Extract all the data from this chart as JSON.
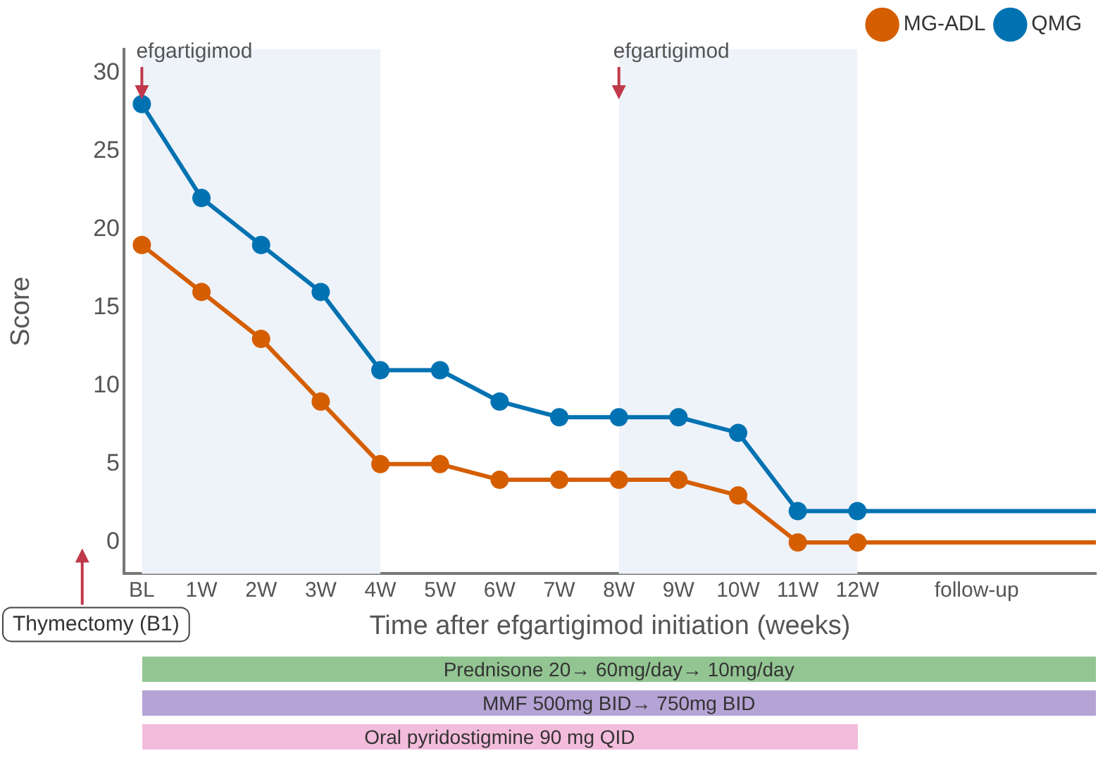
{
  "chart_data": {
    "type": "line",
    "xlabel": "Time after efgartigimod initiation (weeks)",
    "ylabel": "Score",
    "categories": [
      "BL",
      "1W",
      "2W",
      "3W",
      "4W",
      "5W",
      "6W",
      "7W",
      "8W",
      "9W",
      "10W",
      "11W",
      "12W",
      null,
      "follow-up",
      null,
      null
    ],
    "series": [
      {
        "name": "MG-ADL",
        "color": "#d55e00",
        "values": [
          19,
          16,
          13,
          9,
          5,
          5,
          4,
          4,
          4,
          4,
          3,
          0,
          0,
          null,
          null,
          null,
          0
        ]
      },
      {
        "name": "QMG",
        "color": "#0072b2",
        "values": [
          28,
          22,
          19,
          16,
          11,
          11,
          9,
          8,
          8,
          8,
          7,
          2,
          2,
          null,
          null,
          null,
          2
        ]
      }
    ],
    "ylim": [
      -2,
      31.5
    ],
    "yticks": [
      0,
      5,
      10,
      15,
      20,
      25,
      30
    ],
    "grid": false,
    "legend": "top right",
    "marker": "circle",
    "line_style": "solid",
    "bands": [
      {
        "axis": "x",
        "from": "BL",
        "to": "4W",
        "color": "#eef2f9"
      },
      {
        "axis": "x",
        "from": "8W",
        "to": "12W",
        "color": "#eef2f9"
      }
    ],
    "annotations": [
      {
        "text": "efgartigimod",
        "x": "BL",
        "y": 31
      },
      {
        "text": "efgartigimod",
        "x": "8W",
        "y": 31
      },
      "Thymectomy (B1)",
      "Prednisone 20→ 60mg/day→ 10mg/day",
      "MMF 500mg BID→ 750mg BID",
      "Oral pyridostigmine 90 mg QID"
    ]
  }
}
